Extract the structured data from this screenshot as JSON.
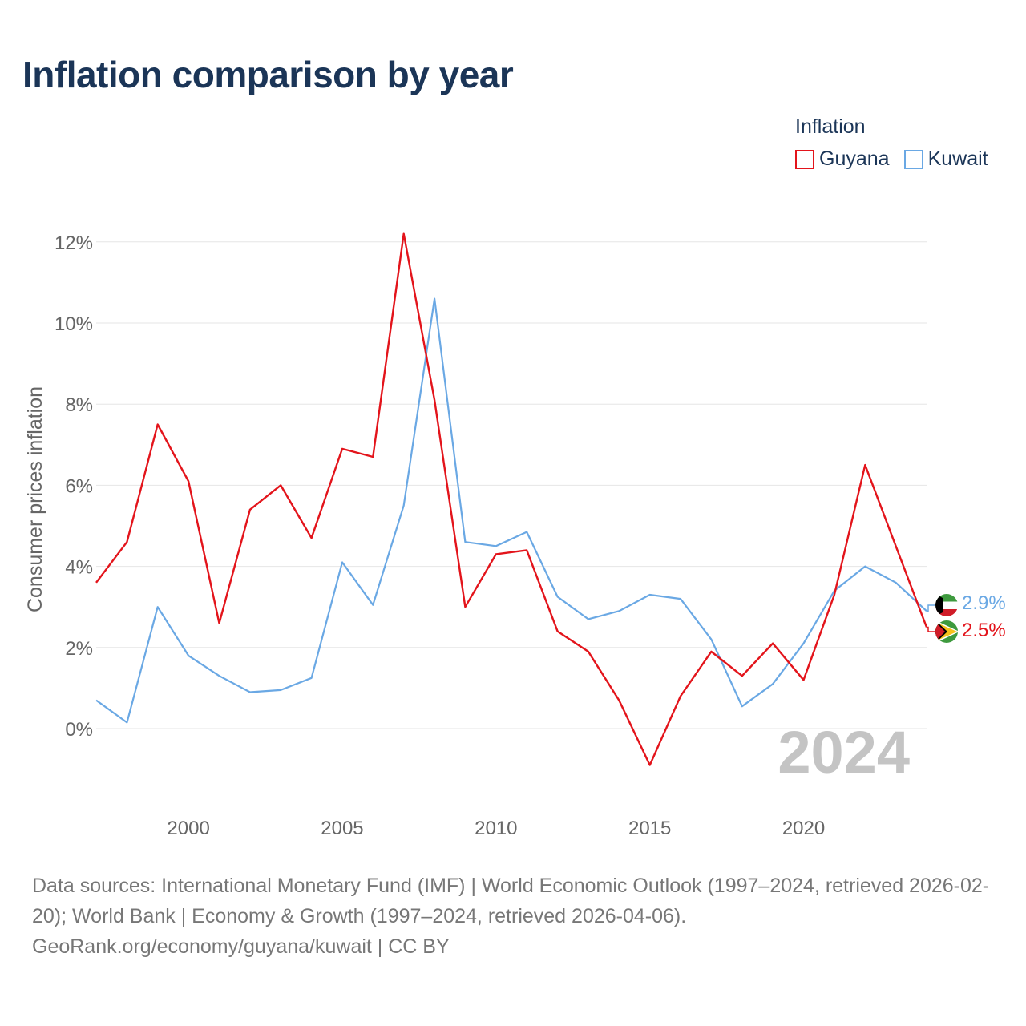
{
  "title": "Inflation comparison by year",
  "legend": {
    "title": "Inflation",
    "items": [
      {
        "label": "Guyana",
        "color": "#e3141b"
      },
      {
        "label": "Kuwait",
        "color": "#6aa8e4"
      }
    ]
  },
  "watermark_year": "2024",
  "footer": {
    "sources": "Data sources: International Monetary Fund (IMF) | World Economic Outlook (1997–2024, retrieved 2026-02-20); World Bank | Economy & Growth (1997–2024, retrieved 2026-04-06).",
    "url": "GeoRank.org/economy/guyana/kuwait | CC BY"
  },
  "flags": [
    {
      "series": "Kuwait",
      "flag": "kuwait-flag"
    },
    {
      "series": "Guyana",
      "flag": "guyana-flag"
    }
  ],
  "chart_data": {
    "type": "line",
    "title": "Inflation comparison by year",
    "xlabel": "",
    "ylabel": "Consumer prices inflation",
    "x": [
      1997,
      1998,
      1999,
      2000,
      2001,
      2002,
      2003,
      2004,
      2005,
      2006,
      2007,
      2008,
      2009,
      2010,
      2011,
      2012,
      2013,
      2014,
      2015,
      2016,
      2017,
      2018,
      2019,
      2020,
      2021,
      2022,
      2023,
      2024
    ],
    "xlim": [
      1997,
      2024
    ],
    "ylim": [
      -2,
      12.5
    ],
    "x_ticks": [
      2000,
      2005,
      2010,
      2015,
      2020
    ],
    "y_ticks": [
      0,
      2,
      4,
      6,
      8,
      10,
      12
    ],
    "y_tick_labels": [
      "0%",
      "2%",
      "4%",
      "6%",
      "8%",
      "10%",
      "12%"
    ],
    "grid": true,
    "legend_position": "top-right",
    "series": [
      {
        "name": "Guyana",
        "color": "#e3141b",
        "end_label": "2.5%",
        "values": [
          3.6,
          4.6,
          7.5,
          6.1,
          2.6,
          5.4,
          6.0,
          4.7,
          6.9,
          6.7,
          12.2,
          8.1,
          3.0,
          4.3,
          4.4,
          2.4,
          1.9,
          0.7,
          -0.9,
          0.8,
          1.9,
          1.3,
          2.1,
          1.2,
          3.3,
          6.5,
          4.5,
          2.5
        ]
      },
      {
        "name": "Kuwait",
        "color": "#6aa8e4",
        "end_label": "2.9%",
        "values": [
          0.7,
          0.15,
          3.0,
          1.8,
          1.3,
          0.9,
          0.95,
          1.25,
          4.1,
          3.05,
          5.5,
          10.6,
          4.6,
          4.5,
          4.85,
          3.25,
          2.7,
          2.9,
          3.3,
          3.2,
          2.2,
          0.55,
          1.1,
          2.1,
          3.4,
          4.0,
          3.6,
          2.9
        ]
      }
    ]
  }
}
